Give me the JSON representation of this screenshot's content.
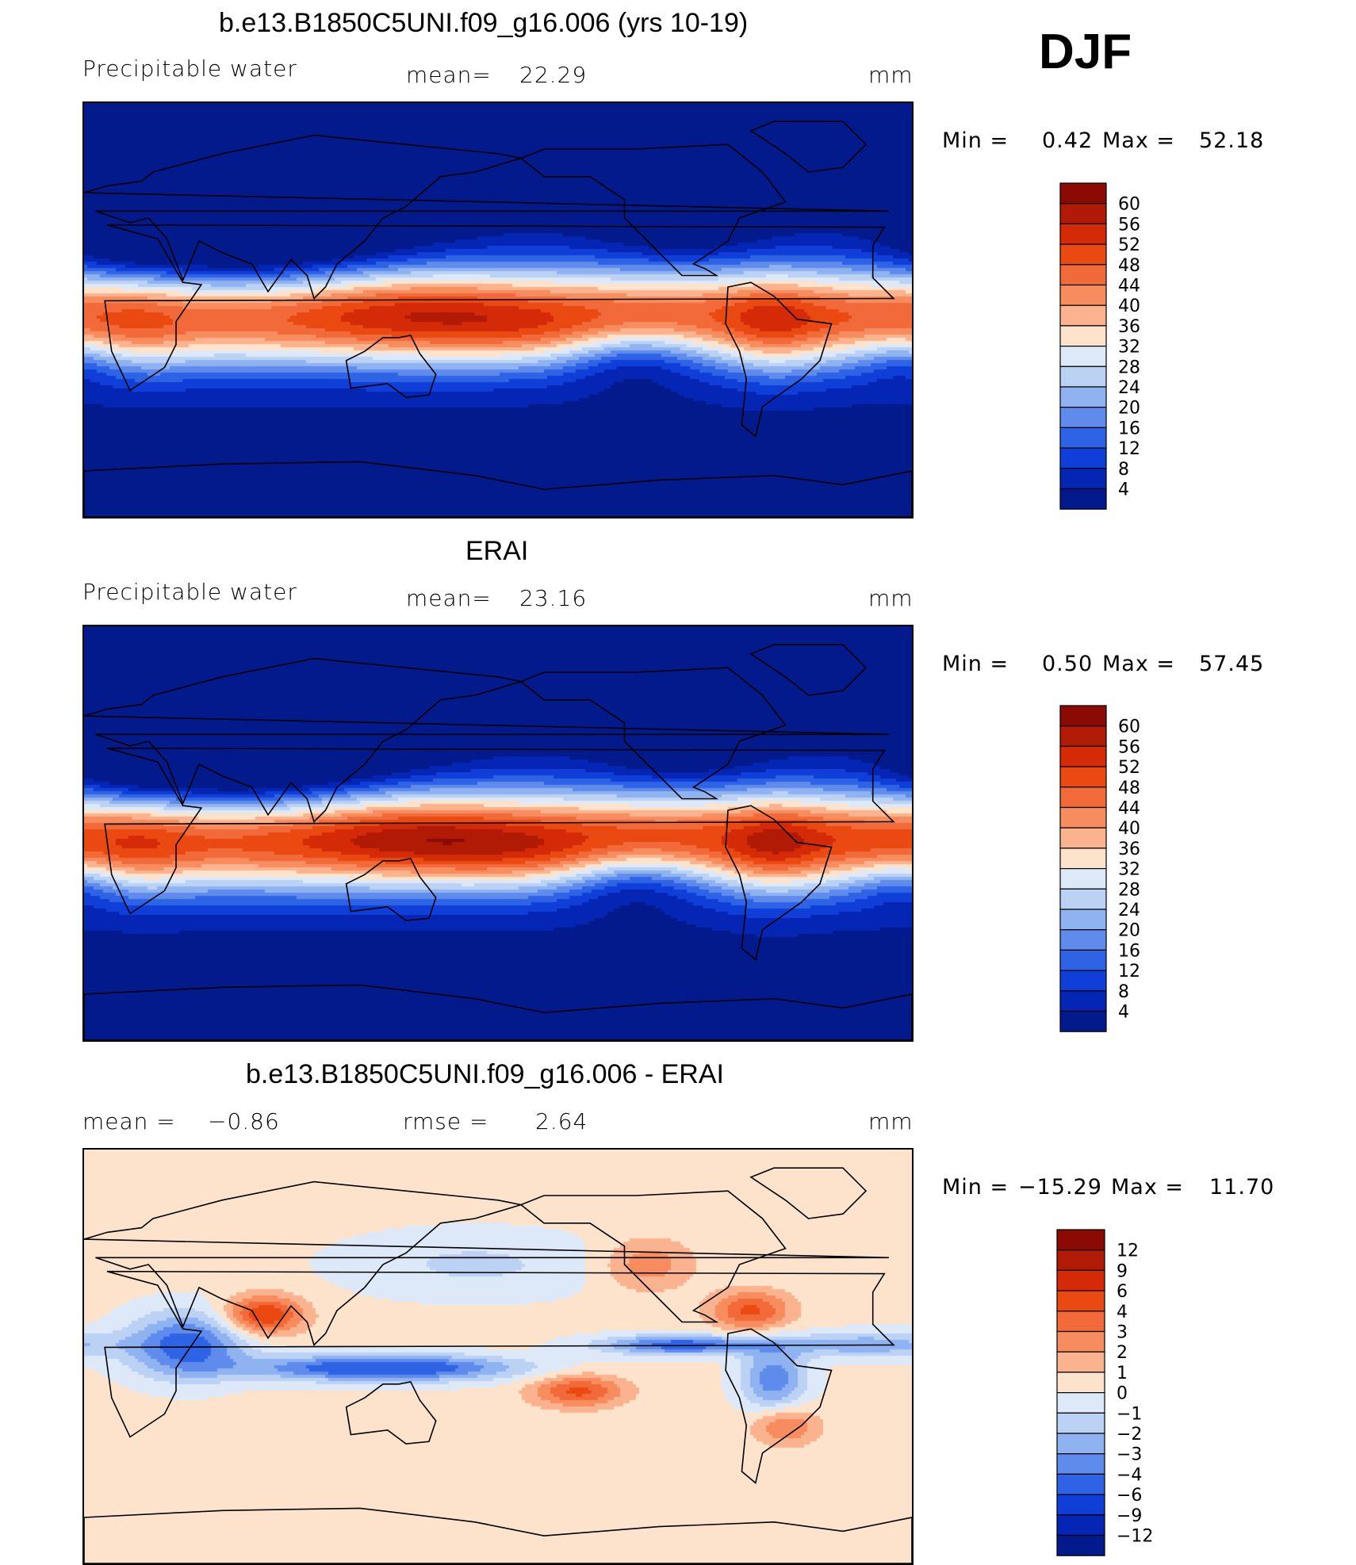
{
  "season": "DJF",
  "panels": [
    {
      "title": "b.e13.B1850C5UNI.f09_g16.006 (yrs 10-19)",
      "left": "Precipitable  water",
      "stat_label": "mean=",
      "stat_value": "22.29",
      "rmse_label": "",
      "rmse_value": "",
      "units": "mm",
      "min_label": "Min  =",
      "min_value": "0.42",
      "max_label": "Max  =",
      "max_value": "52.18"
    },
    {
      "title": "ERAI",
      "left": "Precipitable  water",
      "stat_label": "mean=",
      "stat_value": "23.16",
      "rmse_label": "",
      "rmse_value": "",
      "units": "mm",
      "min_label": "Min  =",
      "min_value": "0.50",
      "max_label": "Max  =",
      "max_value": "57.45"
    },
    {
      "title": "b.e13.B1850C5UNI.f09_g16.006 - ERAI",
      "left": "",
      "stat_label": "mean  =",
      "stat_value": "−0.86",
      "rmse_label": "rmse  =",
      "rmse_value": "2.64",
      "units": "mm",
      "min_label": "Min  =",
      "min_value": "−15.29",
      "max_label": "Max  =",
      "max_value": "11.70"
    }
  ],
  "colorbars": {
    "pw": {
      "labels": [
        "60",
        "56",
        "52",
        "48",
        "44",
        "40",
        "36",
        "32",
        "28",
        "24",
        "20",
        "16",
        "12",
        "8",
        "4"
      ],
      "colors": [
        "#8b0a04",
        "#b11b05",
        "#d52a08",
        "#ea4a12",
        "#f36a3a",
        "#f78c5e",
        "#fbb38f",
        "#fde3cc",
        "#dde9f8",
        "#bcd2f5",
        "#8fb2f1",
        "#5f8cec",
        "#2f63e6",
        "#0f3fd8",
        "#0525b4",
        "#021a8c"
      ]
    },
    "diff": {
      "labels": [
        "12",
        "9",
        "6",
        "4",
        "3",
        "2",
        "1",
        "0",
        "−1",
        "−2",
        "−3",
        "−4",
        "−6",
        "−9",
        "−12"
      ],
      "colors": [
        "#8b0a04",
        "#b11b05",
        "#d52a08",
        "#ea4a12",
        "#f36a3a",
        "#f78c5e",
        "#fbb38f",
        "#fde3cc",
        "#dde9f8",
        "#bcd2f5",
        "#8fb2f1",
        "#5f8cec",
        "#2f63e6",
        "#0f3fd8",
        "#0525b4",
        "#021a8c"
      ]
    }
  },
  "chart_data": [
    {
      "type": "heatmap",
      "title": "b.e13.B1850C5UNI.f09_g16.006 (yrs 10-19)",
      "variable": "Precipitable water",
      "units": "mm",
      "mean": 22.29,
      "min": 0.42,
      "max": 52.18,
      "contour_levels": [
        4,
        8,
        12,
        16,
        20,
        24,
        28,
        32,
        36,
        40,
        44,
        48,
        52,
        56,
        60
      ]
    },
    {
      "type": "heatmap",
      "title": "ERAI",
      "variable": "Precipitable water",
      "units": "mm",
      "mean": 23.16,
      "min": 0.5,
      "max": 57.45,
      "contour_levels": [
        4,
        8,
        12,
        16,
        20,
        24,
        28,
        32,
        36,
        40,
        44,
        48,
        52,
        56,
        60
      ]
    },
    {
      "type": "heatmap",
      "title": "b.e13.B1850C5UNI.f09_g16.006 - ERAI",
      "units": "mm",
      "mean": -0.86,
      "rmse": 2.64,
      "min": -15.29,
      "max": 11.7,
      "contour_levels": [
        -12,
        -9,
        -6,
        -4,
        -3,
        -2,
        -1,
        0,
        1,
        2,
        3,
        4,
        6,
        9,
        12
      ]
    }
  ]
}
